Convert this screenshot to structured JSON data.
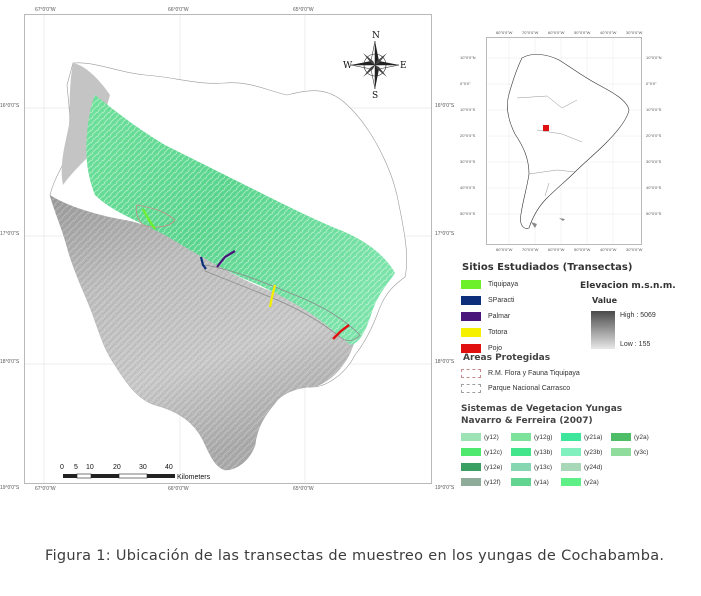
{
  "main_map": {
    "top_coords": [
      "67°0'0\"W",
      "66°0'0\"W",
      "65°0'0\"W"
    ],
    "bottom_coords": [
      "67°0'0\"W",
      "66°0'0\"W",
      "65°0'0\"W"
    ],
    "left_coords": [
      "16°0'0\"S",
      "17°0'0\"S",
      "18°0'0\"S",
      "19°0'0\"S"
    ],
    "right_coords": [
      "16°0'0\"S",
      "17°0'0\"S",
      "18°0'0\"S",
      "19°0'0\"S"
    ],
    "compass": {
      "n": "N",
      "s": "S",
      "e": "E",
      "w": "W"
    },
    "scale_bar": {
      "ticks": [
        "0",
        "5",
        "10",
        "20",
        "30",
        "40"
      ],
      "unit": "Kilometers"
    }
  },
  "inset_map": {
    "top_coords": [
      "80°0'0\"W",
      "70°0'0\"W",
      "60°0'0\"W",
      "50°0'0\"W",
      "40°0'0\"W",
      "30°0'0\"W"
    ],
    "bottom_coords": [
      "80°0'0\"W",
      "70°0'0\"W",
      "60°0'0\"W",
      "50°0'0\"W",
      "40°0'0\"W",
      "30°0'0\"W"
    ],
    "left_coords": [
      "10°0'0\"N",
      "0°0'0\"",
      "10°0'0\"S",
      "20°0'0\"S",
      "30°0'0\"S",
      "40°0'0\"S",
      "50°0'0\"S"
    ],
    "right_coords": [
      "10°0'0\"N",
      "0°0'0\"",
      "10°0'0\"S",
      "20°0'0\"S",
      "30°0'0\"S",
      "40°0'0\"S",
      "50°0'0\"S"
    ]
  },
  "legend": {
    "transects_title": "Sitios Estudiados (Transectas)",
    "transects": [
      {
        "label": "Tiquipaya",
        "color": "#6cf02a"
      },
      {
        "label": "SParacti",
        "color": "#0d2e7a"
      },
      {
        "label": "Palmar",
        "color": "#4a157a"
      },
      {
        "label": "Totora",
        "color": "#f4f000"
      },
      {
        "label": "Pojo",
        "color": "#e01010"
      }
    ],
    "elevation_title": "Elevacion m.s.n.m.",
    "elevation_value_label": "Value",
    "elevation_high": "High : 5069",
    "elevation_low": "Low : 155",
    "protected_title": "Areas Protegidas",
    "protected": [
      {
        "label": "R.M. Flora y Fauna Tiquipaya",
        "color": "#c88a8a"
      },
      {
        "label": "Parque Nacional Carrasco",
        "color": "#a0a0a0"
      }
    ],
    "vegetation_title_1": "Sistemas de Vegetacion Yungas",
    "vegetation_title_2": "Navarro & Ferreira (2007)",
    "vegetation": [
      {
        "label": "(y12)",
        "color": "#9ee3b5"
      },
      {
        "label": "(y12c)",
        "color": "#4ee86f"
      },
      {
        "label": "(y12e)",
        "color": "#3aa061"
      },
      {
        "label": "(y12f)",
        "color": "#8fab9a"
      },
      {
        "label": "(y12g)",
        "color": "#7de39a"
      },
      {
        "label": "(y13b)",
        "color": "#43e58c"
      },
      {
        "label": "(y13c)",
        "color": "#86d6b1"
      },
      {
        "label": "(y1a)",
        "color": "#62d48f"
      },
      {
        "label": "(y21a)",
        "color": "#3de69b"
      },
      {
        "label": "(y23b)",
        "color": "#7ff0be"
      },
      {
        "label": "(y24d)",
        "color": "#a8d8b8"
      },
      {
        "label": "(y2a)",
        "color": "#5fef87"
      },
      {
        "label": "(y2a)",
        "color": "#4dbd68"
      },
      {
        "label": "(y3c)",
        "color": "#8fdc9d"
      }
    ]
  },
  "caption": {
    "label": "Figura 1",
    "text": ": Ubicación de las transectas de muestreo en los yungas de Cochabamba."
  }
}
